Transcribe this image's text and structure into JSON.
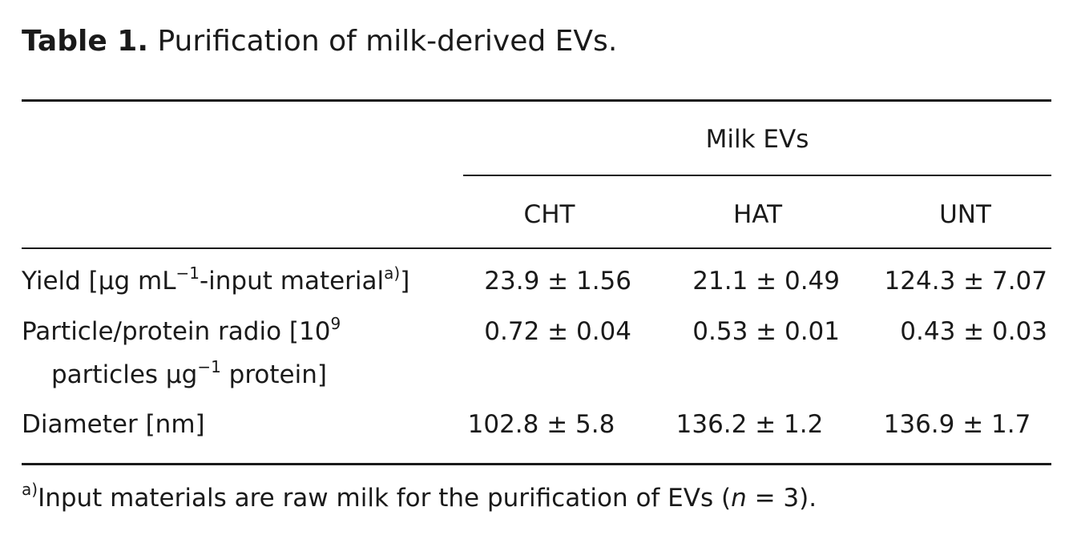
{
  "caption": {
    "label": "Table 1.",
    "text": "Purification of milk-derived EVs."
  },
  "table": {
    "group_header": "Milk EVs",
    "columns": [
      "CHT",
      "HAT",
      "UNT"
    ],
    "rows": [
      {
        "label_main": "Yield [μg mL",
        "label_sup1": "−1",
        "label_mid": "-input material",
        "label_sup2": "a)",
        "label_end": "]",
        "values": [
          "23.9 ± 1.56",
          "21.1 ± 0.49",
          "124.3 ± 7.07"
        ]
      },
      {
        "label_line1_main": "Particle/protein radio [10",
        "label_line1_sup": "9",
        "label_line2_main": "particles μg",
        "label_line2_sup": "−1",
        "label_line2_end": " protein]",
        "values": [
          "0.72 ± 0.04",
          "0.53 ± 0.01",
          "0.43 ± 0.03"
        ]
      },
      {
        "label": "Diameter [nm]",
        "values": [
          "102.8 ± 5.8",
          "136.2 ± 1.2",
          "136.9 ± 1.7"
        ]
      }
    ]
  },
  "footnote": {
    "marker": "a)",
    "text_before": "Input materials are raw milk for the purification of EVs (",
    "italic": "n",
    "text_after": " = 3)."
  }
}
